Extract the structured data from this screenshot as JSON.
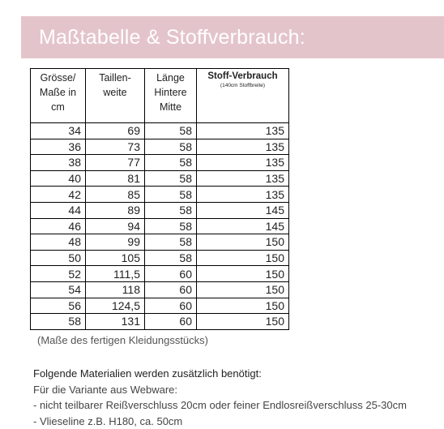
{
  "title": "Maßtabelle & Stoffverbrauch:",
  "table": {
    "headers": {
      "size": [
        "Grösse/",
        "Maße in",
        "cm"
      ],
      "waist": [
        "Taillen-",
        "weite"
      ],
      "length": [
        "Länge",
        "Hintere",
        "Mitte"
      ],
      "fabric": "Stoff-Verbrauch",
      "fabric_note": "(140cm Stoffbreite)"
    },
    "rows": [
      [
        "34",
        "69",
        "58",
        "135"
      ],
      [
        "36",
        "73",
        "58",
        "135"
      ],
      [
        "38",
        "77",
        "58",
        "135"
      ],
      [
        "40",
        "81",
        "58",
        "135"
      ],
      [
        "42",
        "85",
        "58",
        "135"
      ],
      [
        "44",
        "89",
        "58",
        "145"
      ],
      [
        "46",
        "94",
        "58",
        "145"
      ],
      [
        "48",
        "99",
        "58",
        "150"
      ],
      [
        "50",
        "105",
        "58",
        "150"
      ],
      [
        "52",
        "111,5",
        "60",
        "150"
      ],
      [
        "54",
        "118",
        "60",
        "150"
      ],
      [
        "56",
        "124,5",
        "60",
        "150"
      ],
      [
        "58",
        "131",
        "60",
        "150"
      ]
    ]
  },
  "note": "(Maße des fertigen Kleidungsstücks)",
  "materials": {
    "heading": "Folgende Materialien werden zusätzlich benötigt:",
    "lines": [
      "Für die Variante aus Webware:",
      "- nicht teilbarer Reißverschluss 20cm oder feiner Endlosreißverschluss 25-30cm",
      "- Vlieseline z.B. H180, ca. 50cm"
    ]
  },
  "colors": {
    "banner": "#e4c4cb",
    "banner_text": "#ffffff"
  }
}
